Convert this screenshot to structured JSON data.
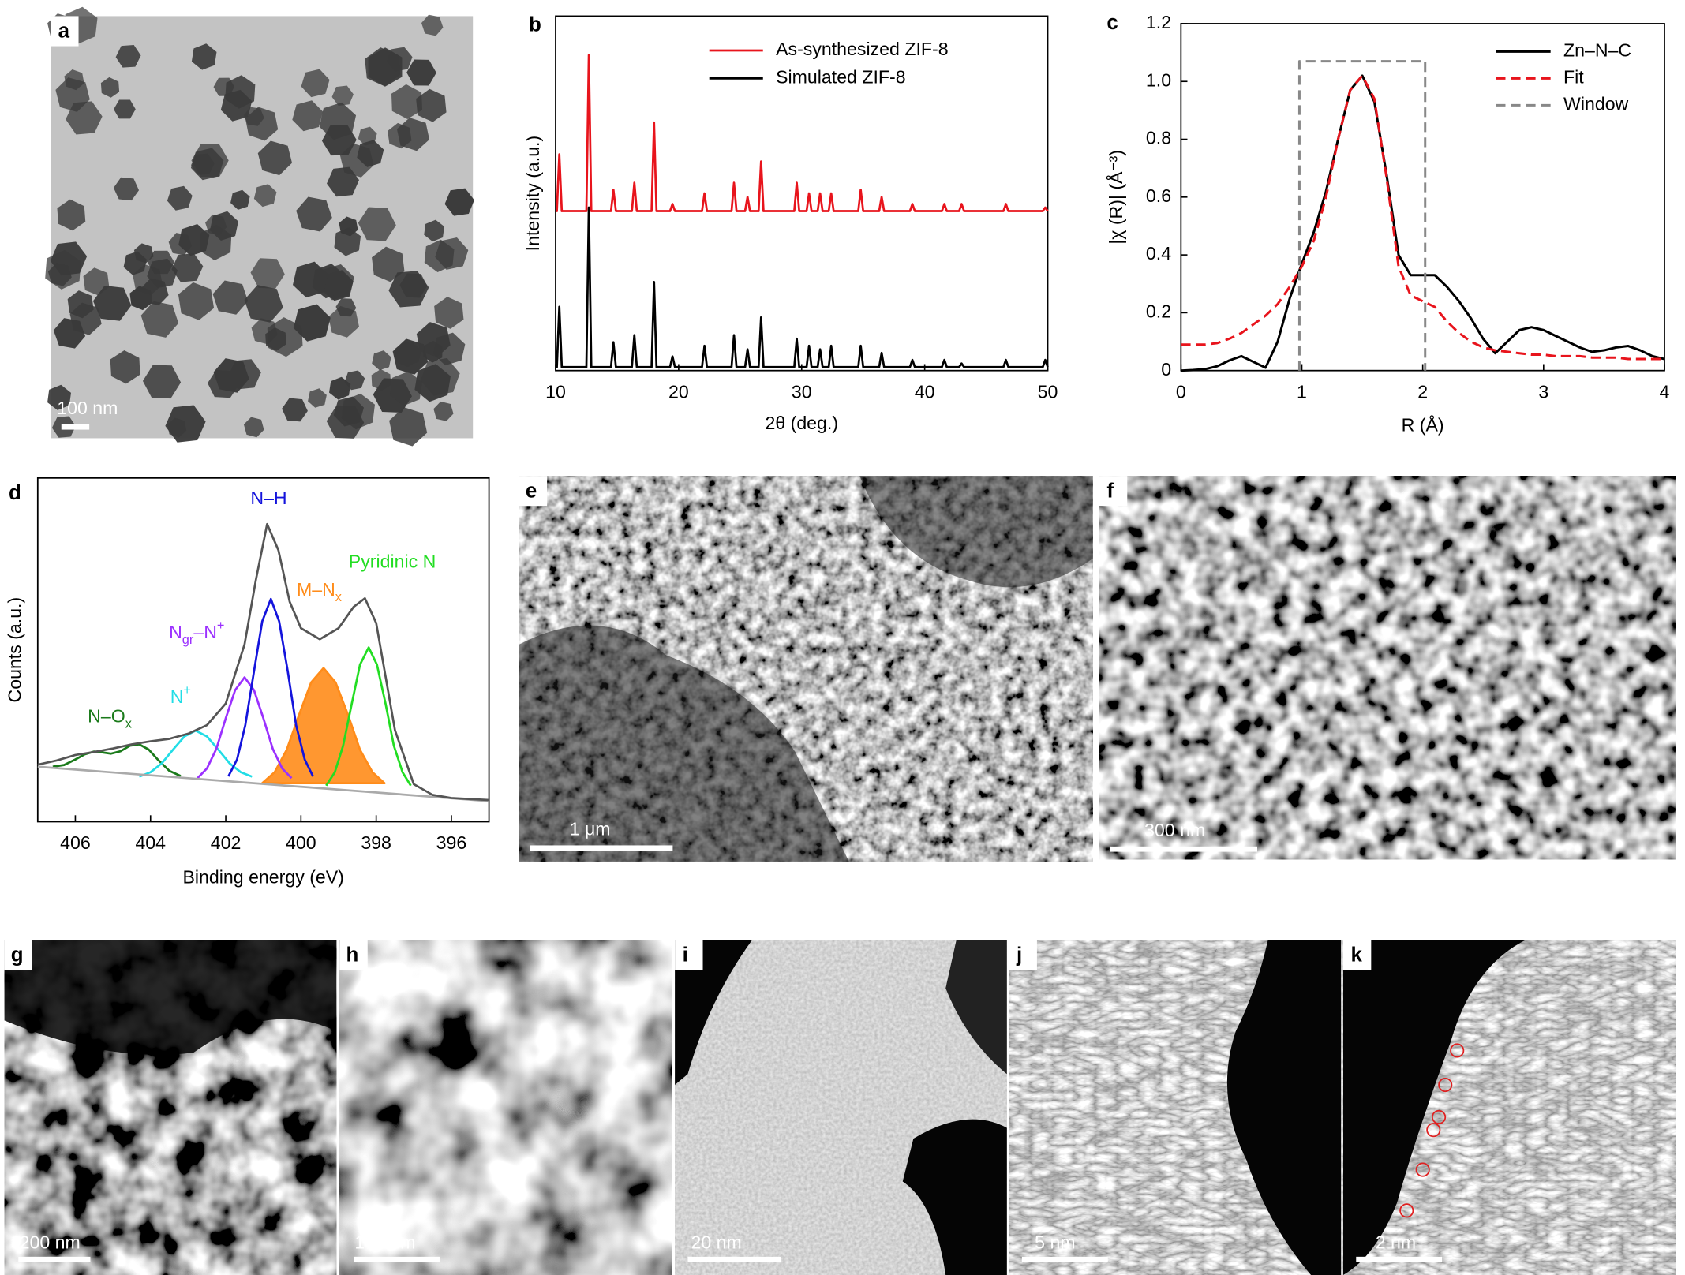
{
  "chart_data": [
    {
      "type": "line",
      "panel": "b",
      "xlabel": "2θ (deg.)",
      "ylabel": "Intensity (a.u.)",
      "xlim": [
        10,
        50
      ],
      "xticks": [
        10,
        20,
        30,
        40,
        50
      ],
      "ylim": [
        0,
        100
      ],
      "legend": "upper right",
      "x": [
        10,
        10.1,
        10.3,
        10.5,
        12.5,
        12.7,
        12.9,
        14.5,
        14.7,
        14.9,
        16.2,
        16.4,
        16.6,
        17.8,
        18.0,
        18.2,
        19.3,
        19.5,
        19.7,
        21.9,
        22.1,
        22.3,
        24.3,
        24.5,
        24.7,
        25.4,
        25.6,
        25.8,
        26.5,
        26.7,
        26.9,
        29.4,
        29.6,
        29.8,
        30.4,
        30.6,
        30.8,
        31.3,
        31.5,
        31.7,
        32.2,
        32.4,
        32.6,
        34.6,
        34.8,
        35.0,
        36.3,
        36.5,
        36.7,
        38.8,
        39.0,
        39.2,
        41.4,
        41.6,
        41.8,
        42.8,
        43.0,
        43.2,
        46.4,
        46.6,
        46.8,
        49.6,
        49.8,
        50
      ],
      "series": [
        {
          "name": "As-synthesized ZIF-8",
          "color": "#e8141c",
          "linestyle": "solid",
          "values": [
            45,
            45,
            61,
            45,
            45,
            89,
            45,
            45,
            51,
            45,
            45,
            53,
            45,
            45,
            70,
            45,
            45,
            47,
            45,
            45,
            50,
            45,
            45,
            53,
            45,
            45,
            49,
            45,
            45,
            59,
            45,
            45,
            53,
            45,
            45,
            50,
            45,
            45,
            50,
            45,
            45,
            50,
            45,
            45,
            51,
            45,
            45,
            49,
            45,
            45,
            47,
            45,
            45,
            47,
            45,
            45,
            47,
            45,
            45,
            47,
            45,
            45,
            46,
            45
          ]
        },
        {
          "name": "Simulated ZIF-8",
          "color": "#000000",
          "linestyle": "solid",
          "values": [
            1,
            1,
            18,
            1,
            1,
            46,
            1,
            1,
            8,
            1,
            1,
            10,
            1,
            1,
            25,
            1,
            1,
            4,
            1,
            1,
            7,
            1,
            1,
            10,
            1,
            1,
            6,
            1,
            1,
            15,
            1,
            1,
            9,
            1,
            1,
            7,
            1,
            1,
            6,
            1,
            1,
            7,
            1,
            1,
            7,
            1,
            1,
            5,
            1,
            1,
            3,
            1,
            1,
            3,
            1,
            1,
            2,
            1,
            1,
            3,
            1,
            1,
            3,
            1
          ]
        }
      ]
    },
    {
      "type": "line",
      "panel": "c",
      "xlabel": "R (Å)",
      "ylabel": "|χ (R)| (Å⁻³)",
      "xlim": [
        0,
        4
      ],
      "xticks": [
        0,
        1,
        2,
        3,
        4
      ],
      "ylim": [
        0,
        1.2
      ],
      "yticks": [
        0,
        0.2,
        0.4,
        0.6,
        0.8,
        {
          "value": 1,
          "label": "1.0"
        },
        1.2
      ],
      "legend": "upper right",
      "x": [
        0,
        0.1,
        0.2,
        0.3,
        0.4,
        0.5,
        0.6,
        0.7,
        0.8,
        0.9,
        1.0,
        1.1,
        1.2,
        1.3,
        1.4,
        1.5,
        1.6,
        1.7,
        1.8,
        1.9,
        2.0,
        2.1,
        2.2,
        2.3,
        2.4,
        2.5,
        2.6,
        2.7,
        2.8,
        2.9,
        3.0,
        3.1,
        3.2,
        3.3,
        3.4,
        3.5,
        3.6,
        3.7,
        3.8,
        3.9,
        4.0
      ],
      "series": [
        {
          "name": "Zn–N–C",
          "color": "#000000",
          "linestyle": "solid",
          "values": [
            0,
            0.002,
            0.005,
            0.015,
            0.035,
            0.05,
            0.03,
            0.01,
            0.1,
            0.25,
            0.37,
            0.48,
            0.62,
            0.8,
            0.97,
            1.02,
            0.93,
            0.68,
            0.4,
            0.33,
            0.33,
            0.33,
            0.29,
            0.24,
            0.18,
            0.11,
            0.06,
            0.1,
            0.14,
            0.15,
            0.14,
            0.12,
            0.1,
            0.08,
            0.065,
            0.07,
            0.08,
            0.085,
            0.07,
            0.05,
            0.04
          ]
        },
        {
          "name": "Fit",
          "color": "#e8141c",
          "linestyle": "dashed",
          "values": [
            0.09,
            0.09,
            0.09,
            0.095,
            0.11,
            0.13,
            0.16,
            0.19,
            0.23,
            0.29,
            0.36,
            0.45,
            0.6,
            0.8,
            0.97,
            1.02,
            0.94,
            0.67,
            0.36,
            0.26,
            0.24,
            0.22,
            0.17,
            0.13,
            0.1,
            0.08,
            0.07,
            0.065,
            0.06,
            0.055,
            0.055,
            0.05,
            0.05,
            0.05,
            0.045,
            0.045,
            0.045,
            0.04,
            0.04,
            0.04,
            0.04
          ]
        },
        {
          "name": "Window",
          "color": "#888888",
          "linestyle": "dashed",
          "x": [
            0.98,
            0.98,
            2.02,
            2.02
          ],
          "values": [
            0,
            1.07,
            1.07,
            0
          ]
        }
      ]
    },
    {
      "type": "line",
      "panel": "d",
      "xlabel": "Binding energy (eV)",
      "ylabel": "Counts (a.u.)",
      "xlim": [
        407,
        395
      ],
      "xticks": [
        406,
        404,
        402,
        400,
        398,
        396
      ],
      "ylim": [
        0,
        100
      ],
      "series": [
        {
          "label_parts": [
            {
              "text": "N–O"
            },
            {
              "text": "x",
              "sub": true
            }
          ],
          "color": "#1a7a1a",
          "linestyle": "solid",
          "x": [
            403.2,
            403.5,
            403.8,
            404.05,
            404.3,
            404.55,
            404.8,
            405.05,
            405.3,
            405.5,
            405.75,
            406.0,
            406.3,
            406.6
          ],
          "values": [
            13.3,
            14.8,
            18.0,
            21.0,
            22.5,
            22.1,
            20.5,
            19.8,
            20.2,
            20.4,
            19.6,
            18.1,
            16.5,
            16.0
          ]
        },
        {
          "label_parts": [
            {
              "text": "N"
            },
            {
              "text": "+",
              "sup": true
            }
          ],
          "color": "#22dde6",
          "linestyle": "solid",
          "x": [
            401.3,
            401.6,
            401.9,
            402.2,
            402.5,
            402.8,
            403.1,
            403.4,
            403.7,
            404.0,
            404.3
          ],
          "values": [
            13.1,
            14.4,
            17.0,
            21.0,
            24.8,
            26.5,
            24.8,
            21.0,
            17.0,
            14.4,
            13.1
          ]
        },
        {
          "label_parts": [
            {
              "text": "N"
            },
            {
              "text": "gr",
              "sub": true
            },
            {
              "text": "–N"
            },
            {
              "text": "+",
              "sup": true
            }
          ],
          "color": "#9b30ff",
          "linestyle": "solid",
          "x": [
            400.25,
            400.5,
            400.75,
            401.0,
            401.25,
            401.5,
            401.75,
            402.0,
            402.25,
            402.5,
            402.75
          ],
          "values": [
            12.7,
            15.5,
            21.2,
            30.1,
            38.3,
            42.0,
            38.3,
            30.1,
            21.2,
            15.5,
            12.7
          ]
        },
        {
          "label_parts": [
            {
              "text": "N–H"
            }
          ],
          "color": "#1414dc",
          "linestyle": "solid",
          "x": [
            399.68,
            399.9,
            400.13,
            400.35,
            400.58,
            400.8,
            401.03,
            401.25,
            401.48,
            401.7,
            401.93
          ],
          "values": [
            13.2,
            18.1,
            28.1,
            43.7,
            58.3,
            64.8,
            58.3,
            43.7,
            28.1,
            18.1,
            13.2
          ]
        },
        {
          "label_parts": [
            {
              "text": "M–N"
            },
            {
              "text": "x",
              "sub": true
            }
          ],
          "color": "#ff8c1a",
          "linestyle": "solid",
          "fill": true,
          "x": [
            397.78,
            398.1,
            398.43,
            398.75,
            399.08,
            399.4,
            399.73,
            400.05,
            400.38,
            400.7,
            401.03
          ],
          "values": [
            11.2,
            14.4,
            20.9,
            31.1,
            40.5,
            44.7,
            40.5,
            31.1,
            20.9,
            14.4,
            11.2
          ]
        },
        {
          "label_parts": [
            {
              "text": "Pyridinic N"
            }
          ],
          "color": "#22dd22",
          "linestyle": "solid",
          "x": [
            397.08,
            397.3,
            397.53,
            397.75,
            397.98,
            398.2,
            398.43,
            398.65,
            398.88,
            399.1,
            399.33
          ],
          "values": [
            10.5,
            14.4,
            22.1,
            34.3,
            45.7,
            50.7,
            45.7,
            34.3,
            22.1,
            14.4,
            10.5
          ]
        },
        {
          "color": "#aaaaaa",
          "linestyle": "solid",
          "x": [
            407,
            395
          ],
          "values": [
            16,
            6
          ]
        },
        {
          "color": "#555555",
          "linestyle": "solid",
          "x": [
            407,
            406.5,
            406,
            405.5,
            405,
            404.5,
            404,
            403.5,
            403,
            402.5,
            402,
            401.5,
            401.2,
            400.9,
            400.6,
            400.3,
            400,
            399.5,
            399,
            398.6,
            398.3,
            398,
            397.5,
            397,
            396.5,
            396,
            395.5,
            395
          ],
          "values": [
            16.6,
            17.8,
            19.4,
            20.3,
            21.3,
            22.5,
            23.4,
            24.1,
            25.6,
            28.1,
            34.4,
            51.6,
            70.3,
            86.6,
            79,
            64,
            56.3,
            53.1,
            56.3,
            62.5,
            65,
            57.8,
            26.6,
            10.9,
            7.8,
            6.9,
            6.6,
            6.3
          ]
        }
      ]
    }
  ],
  "images": [
    {
      "panel": "a",
      "scale_bar": "100 nm"
    },
    {
      "panel": "e",
      "scale_bar": "1 μm"
    },
    {
      "panel": "f",
      "scale_bar": "300 nm"
    },
    {
      "panel": "g",
      "scale_bar": "200 nm"
    },
    {
      "panel": "h",
      "scale_bar": "100 nm"
    },
    {
      "panel": "i",
      "scale_bar": "20 nm"
    },
    {
      "panel": "j",
      "scale_bar": "5 nm"
    },
    {
      "panel": "k",
      "scale_bar": "2 nm"
    }
  ]
}
